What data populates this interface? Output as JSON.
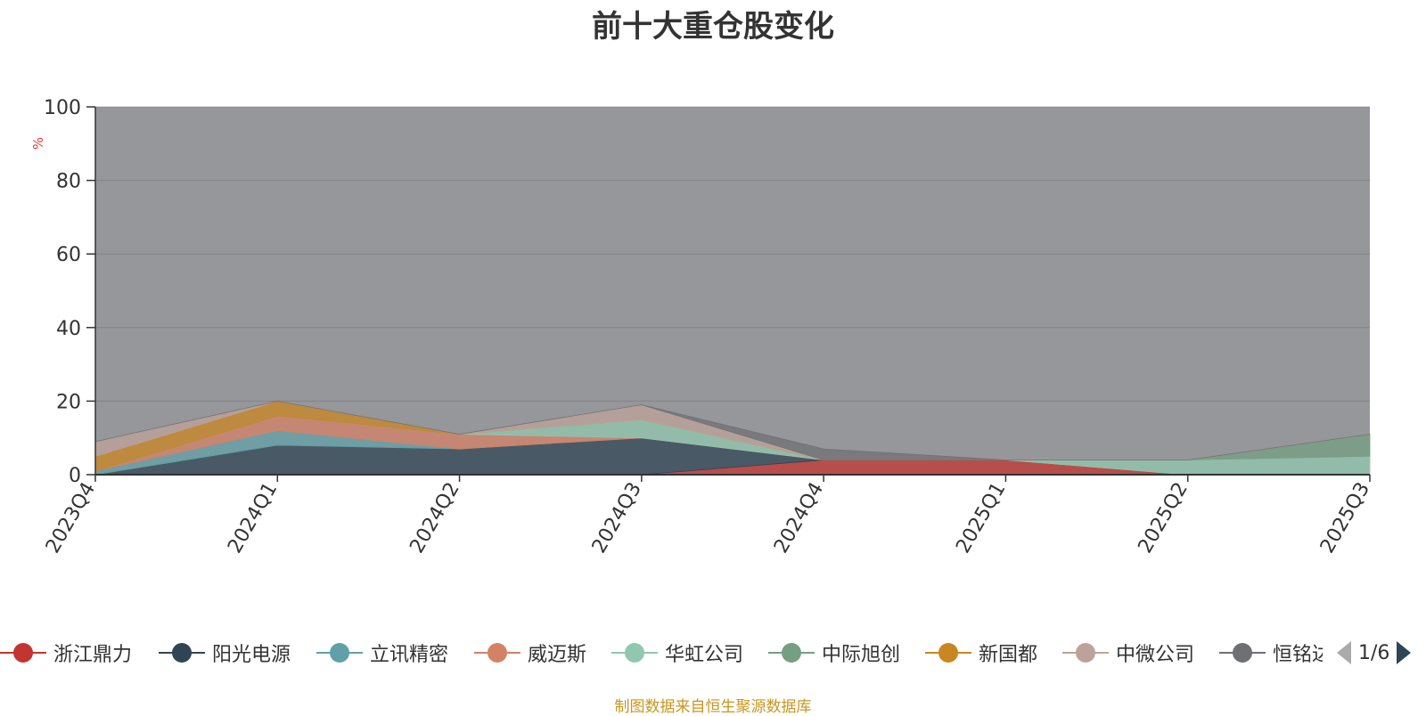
{
  "chart_data": {
    "type": "area",
    "title": "前十大重仓股变化",
    "ylabel": "%",
    "ylim": [
      0,
      100
    ],
    "yticks": [
      0,
      20,
      40,
      60,
      80,
      100
    ],
    "categories": [
      "2023Q4",
      "2024Q1",
      "2024Q2",
      "2024Q3",
      "2024Q4",
      "2025Q1",
      "2025Q2",
      "2025Q3"
    ],
    "grid": true,
    "legend_position": "bottom",
    "series": [
      {
        "name": "浙江鼎力",
        "color": "#c23531",
        "values": [
          0,
          0,
          0,
          0,
          4,
          4,
          0,
          0
        ]
      },
      {
        "name": "阳光电源",
        "color": "#2f4554",
        "values": [
          0,
          8,
          7,
          10,
          0,
          0,
          0,
          0
        ]
      },
      {
        "name": "立讯精密",
        "color": "#61a0a8",
        "values": [
          1,
          4,
          0,
          0,
          0,
          0,
          0,
          0
        ]
      },
      {
        "name": "威迈斯",
        "color": "#d48265",
        "values": [
          0,
          4,
          4,
          0,
          0,
          0,
          0,
          0
        ]
      },
      {
        "name": "华虹公司",
        "color": "#91c7ae",
        "values": [
          0,
          0,
          0,
          5,
          0,
          0,
          4,
          5
        ]
      },
      {
        "name": "中际旭创",
        "color": "#749f83",
        "values": [
          0,
          0,
          0,
          0,
          0,
          0,
          0,
          6
        ]
      },
      {
        "name": "新国都",
        "color": "#ca8622",
        "values": [
          4,
          4,
          0,
          0,
          0,
          0,
          0,
          0
        ]
      },
      {
        "name": "中微公司",
        "color": "#bda29a",
        "values": [
          4,
          0,
          0,
          4,
          0,
          0,
          0,
          0
        ]
      },
      {
        "name": "恒铭达",
        "color": "#6e7074",
        "values": [
          0,
          0,
          0,
          0,
          3,
          0,
          0,
          0
        ]
      }
    ]
  },
  "legend": {
    "page": "1/6",
    "items": [
      {
        "label": "浙江鼎力",
        "color": "#c23531"
      },
      {
        "label": "阳光电源",
        "color": "#2f4554"
      },
      {
        "label": "立讯精密",
        "color": "#61a0a8"
      },
      {
        "label": "威迈斯",
        "color": "#d48265"
      },
      {
        "label": "华虹公司",
        "color": "#91c7ae"
      },
      {
        "label": "中际旭创",
        "color": "#749f83"
      },
      {
        "label": "新国都",
        "color": "#ca8622"
      },
      {
        "label": "中微公司",
        "color": "#bda29a"
      },
      {
        "label": "恒铭达",
        "color": "#6e7074"
      }
    ]
  },
  "footer": {
    "source": "制图数据来自恒生聚源数据库"
  }
}
